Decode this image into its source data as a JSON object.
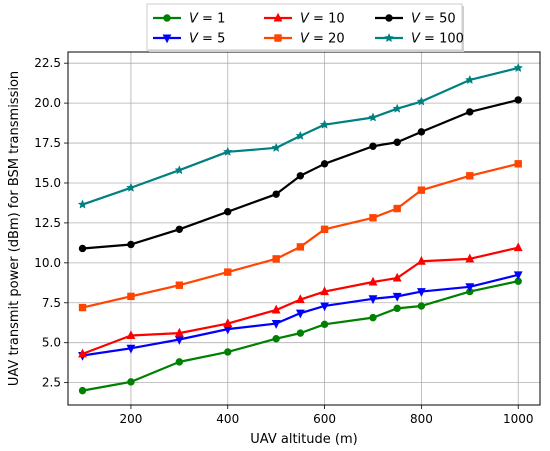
{
  "chart_data": {
    "type": "line",
    "title": "",
    "xlabel": "UAV altitude (m)",
    "ylabel": "UAV transmit power (dBm) for BSM transmission",
    "xlim": [
      70,
      1045
    ],
    "ylim": [
      1.1,
      23.2
    ],
    "xticks": [
      200,
      400,
      600,
      800,
      1000
    ],
    "xtick_labels": [
      "200",
      "400",
      "600",
      "800",
      "1000"
    ],
    "yticks": [
      2.5,
      5.0,
      7.5,
      10.0,
      12.5,
      15.0,
      17.5,
      20.0,
      22.5
    ],
    "ytick_labels": [
      "2.5",
      "5.0",
      "7.5",
      "10.0",
      "12.5",
      "15.0",
      "17.5",
      "20.0",
      "22.5"
    ],
    "grid": true,
    "legend_position": "top-center, outside plot, 3 columns",
    "x": [
      100,
      200,
      300,
      400,
      500,
      550,
      600,
      700,
      750,
      800,
      900,
      1000
    ],
    "series": [
      {
        "name_prefix": "V",
        "name_value": "= 1",
        "color": "#008000",
        "marker": "circle",
        "values": [
          2.0,
          2.55,
          3.8,
          4.42,
          5.25,
          5.6,
          6.15,
          6.57,
          7.15,
          7.3,
          8.2,
          8.85
        ]
      },
      {
        "name_prefix": "V",
        "name_value": "= 5",
        "color": "#0000ff",
        "marker": "triangle-down",
        "values": [
          4.2,
          4.65,
          5.2,
          5.85,
          6.2,
          6.85,
          7.3,
          7.75,
          7.9,
          8.2,
          8.5,
          9.25
        ]
      },
      {
        "name_prefix": "V",
        "name_value": "= 10",
        "color": "#ff0000",
        "marker": "triangle-up",
        "values": [
          4.3,
          5.45,
          5.6,
          6.2,
          7.05,
          7.7,
          8.2,
          8.8,
          9.05,
          10.1,
          10.25,
          10.95
        ]
      },
      {
        "name_prefix": "V",
        "name_value": "= 20",
        "color": "#ff4500",
        "marker": "square",
        "values": [
          7.2,
          7.9,
          8.6,
          9.42,
          10.25,
          11.0,
          12.1,
          12.82,
          13.4,
          14.55,
          15.45,
          16.2
        ]
      },
      {
        "name_prefix": "V",
        "name_value": "= 50",
        "color": "#000000",
        "marker": "circle",
        "values": [
          10.9,
          11.15,
          12.1,
          13.2,
          14.3,
          15.45,
          16.2,
          17.3,
          17.55,
          18.2,
          19.45,
          20.2
        ]
      },
      {
        "name_prefix": "V",
        "name_value": "= 100",
        "color": "#008080",
        "marker": "star",
        "values": [
          13.65,
          14.7,
          15.8,
          16.95,
          17.2,
          17.95,
          18.65,
          19.1,
          19.65,
          20.1,
          21.45,
          22.2
        ]
      }
    ]
  }
}
